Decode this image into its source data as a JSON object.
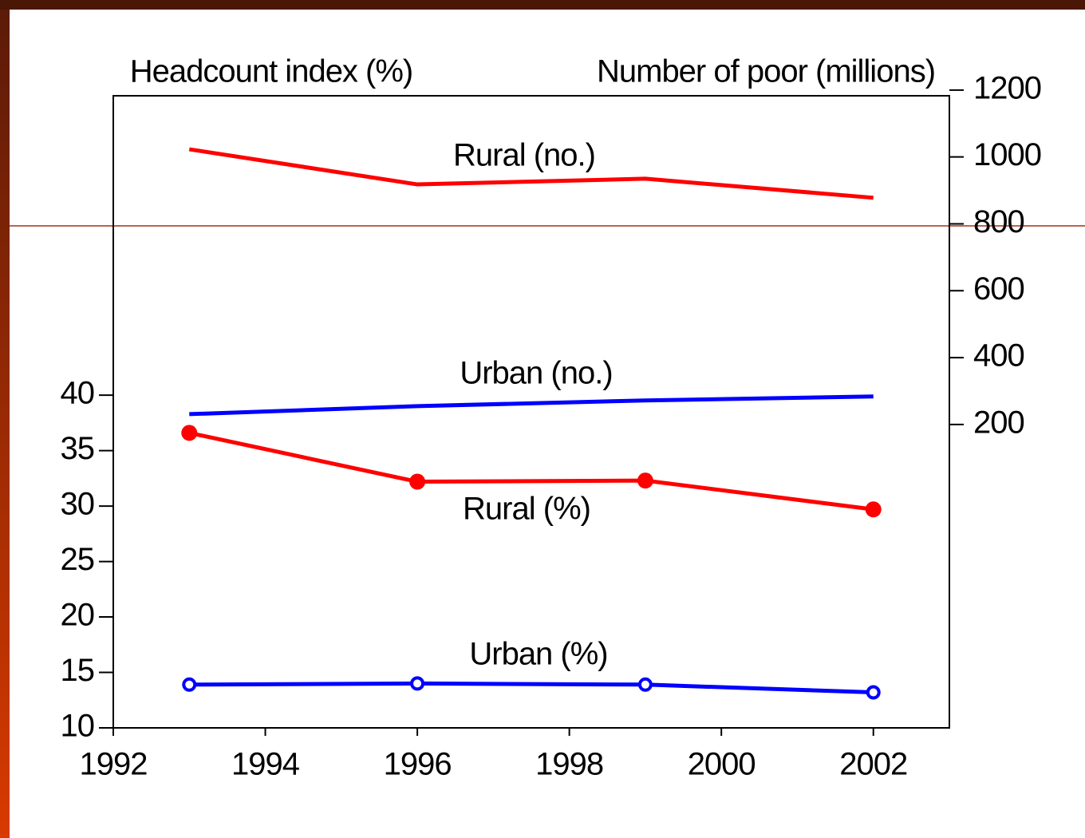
{
  "chart_data": {
    "type": "line",
    "y_label": "Headcount index (%)",
    "y2_label": "Number of poor (millions)",
    "x": [
      1993,
      1996,
      1999,
      2002
    ],
    "xlim": [
      1992,
      2003
    ],
    "xticks": [
      1992,
      1994,
      1996,
      1998,
      2000,
      2002
    ],
    "ylim": [
      10,
      67
    ],
    "yticks": [
      10,
      15,
      20,
      25,
      30,
      35,
      40
    ],
    "y2lim": [
      -707,
      1183
    ],
    "y2ticks": [
      200,
      400,
      600,
      800,
      1000,
      1200
    ],
    "series": [
      {
        "name": "Rural (no.)",
        "color": "#ff0000",
        "axis": "y2",
        "marker": "none",
        "values": [
          1023,
          918,
          935,
          878
        ]
      },
      {
        "name": "Urban (no.)",
        "color": "#0000ff",
        "axis": "y2",
        "marker": "none",
        "values": [
          231,
          255,
          272,
          284
        ]
      },
      {
        "name": "Rural (%)",
        "color": "#ff0000",
        "marker": "filled",
        "values": [
          36.6,
          32.2,
          32.3,
          29.7
        ]
      },
      {
        "name": "Urban (%)",
        "color": "#0000ff",
        "marker": "open",
        "values": [
          13.9,
          14.0,
          13.9,
          13.2
        ]
      }
    ]
  }
}
